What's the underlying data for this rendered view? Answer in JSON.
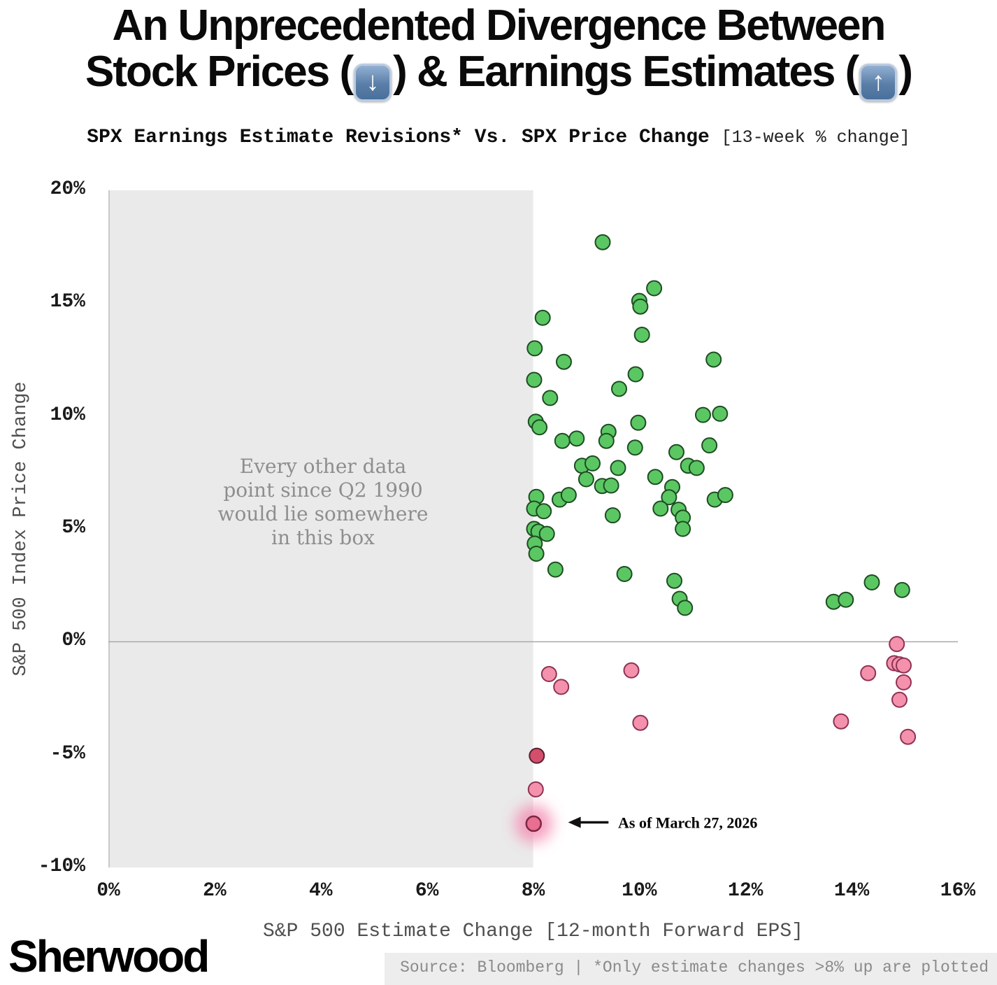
{
  "header": {
    "title_line1": "An Unprecedented Divergence Between",
    "title_line2_a": "Stock Prices (",
    "title_line2_b": ") & Earnings Estimates (",
    "title_line2_c": ")",
    "down_glyph": "↓",
    "up_glyph": "↑",
    "subtitle_main": "SPX Earnings Estimate Revisions* Vs. SPX Price Change ",
    "subtitle_note": "[13-week % change]"
  },
  "chart_data": {
    "type": "scatter",
    "title": "An Unprecedented Divergence Between Stock Prices (down) & Earnings Estimates (up)",
    "subtitle": "SPX Earnings Estimate Revisions* Vs. SPX Price Change [13-week % change]",
    "xlabel": "S&P 500 Estimate Change [12-month Forward EPS]",
    "ylabel": "S&P 500 Index Price Change",
    "xlim": [
      0,
      16
    ],
    "ylim": [
      -10,
      20
    ],
    "grid": "zero-line-only",
    "legend": "none",
    "x_ticks": [
      {
        "label": "0%",
        "value": 0
      },
      {
        "label": "2%",
        "value": 2
      },
      {
        "label": "4%",
        "value": 4
      },
      {
        "label": "6%",
        "value": 6
      },
      {
        "label": "8%",
        "value": 8
      },
      {
        "label": "10%",
        "value": 10
      },
      {
        "label": "12%",
        "value": 12
      },
      {
        "label": "14%",
        "value": 14
      },
      {
        "label": "16%",
        "value": 16
      }
    ],
    "y_ticks": [
      {
        "label": "20%",
        "value": 20
      },
      {
        "label": "15%",
        "value": 15
      },
      {
        "label": "10%",
        "value": 10
      },
      {
        "label": "5%",
        "value": 5
      },
      {
        "label": "0%",
        "value": 0
      },
      {
        "label": "-5%",
        "value": -5
      },
      {
        "label": "-10%",
        "value": -10
      }
    ],
    "box": {
      "x_range": [
        0,
        8
      ],
      "label_lines": [
        "Every other data",
        "point since Q2 1990",
        "would lie somewhere",
        "in this box"
      ]
    },
    "colors": {
      "box": "#eaeaea",
      "zero_line": "#a8a8a8",
      "axis_line": "#c9c9c9"
    },
    "series": [
      {
        "name": "price-gain",
        "color": "#5bc763",
        "stroke": "#1d4c22",
        "points": [
          [
            9.31,
            17.7
          ],
          [
            10.28,
            15.66
          ],
          [
            10.0,
            15.1
          ],
          [
            10.02,
            14.85
          ],
          [
            8.18,
            14.35
          ],
          [
            10.05,
            13.6
          ],
          [
            8.03,
            13.0
          ],
          [
            8.58,
            12.4
          ],
          [
            11.4,
            12.5
          ],
          [
            8.02,
            11.6
          ],
          [
            9.93,
            11.85
          ],
          [
            8.32,
            10.8
          ],
          [
            9.62,
            11.2
          ],
          [
            11.2,
            10.05
          ],
          [
            9.98,
            9.7
          ],
          [
            11.52,
            10.1
          ],
          [
            8.05,
            9.75
          ],
          [
            8.12,
            9.5
          ],
          [
            9.42,
            9.3
          ],
          [
            8.55,
            8.9
          ],
          [
            8.82,
            9.0
          ],
          [
            9.38,
            8.9
          ],
          [
            9.92,
            8.6
          ],
          [
            11.32,
            8.7
          ],
          [
            10.7,
            8.4
          ],
          [
            8.92,
            7.8
          ],
          [
            9.12,
            7.9
          ],
          [
            9.6,
            7.7
          ],
          [
            10.92,
            7.8
          ],
          [
            11.08,
            7.7
          ],
          [
            9.0,
            7.2
          ],
          [
            9.3,
            6.9
          ],
          [
            9.47,
            6.92
          ],
          [
            10.3,
            7.3
          ],
          [
            10.62,
            6.85
          ],
          [
            8.06,
            6.42
          ],
          [
            8.5,
            6.3
          ],
          [
            8.67,
            6.5
          ],
          [
            10.56,
            6.4
          ],
          [
            11.42,
            6.3
          ],
          [
            11.62,
            6.5
          ],
          [
            8.02,
            5.9
          ],
          [
            8.2,
            5.78
          ],
          [
            9.5,
            5.6
          ],
          [
            10.4,
            5.9
          ],
          [
            10.74,
            5.85
          ],
          [
            10.82,
            5.5
          ],
          [
            8.02,
            5.0
          ],
          [
            8.1,
            4.88
          ],
          [
            8.26,
            4.78
          ],
          [
            10.82,
            5.0
          ],
          [
            8.03,
            4.35
          ],
          [
            8.06,
            3.9
          ],
          [
            8.42,
            3.2
          ],
          [
            9.72,
            3.0
          ],
          [
            10.66,
            2.7
          ],
          [
            10.76,
            1.9
          ],
          [
            10.86,
            1.5
          ],
          [
            13.66,
            1.77
          ],
          [
            13.89,
            1.86
          ],
          [
            14.38,
            2.63
          ],
          [
            14.95,
            2.29
          ]
        ]
      },
      {
        "name": "price-decline",
        "color": "#f491ad",
        "stroke": "#8f3253",
        "points": [
          [
            8.3,
            -1.43
          ],
          [
            8.53,
            -2.0
          ],
          [
            9.85,
            -1.27
          ],
          [
            10.02,
            -3.59
          ],
          [
            14.31,
            -1.39
          ],
          [
            14.85,
            -0.1
          ],
          [
            14.8,
            -0.95
          ],
          [
            14.9,
            -1.0
          ],
          [
            14.98,
            -1.05
          ],
          [
            14.98,
            -1.8
          ],
          [
            14.9,
            -2.57
          ],
          [
            13.8,
            -3.53
          ],
          [
            15.06,
            -4.21
          ],
          [
            8.05,
            -6.54
          ]
        ]
      },
      {
        "name": "price-decline-deep",
        "color": "#d34f6b",
        "stroke": "#58202e",
        "points": [
          [
            8.07,
            -5.05
          ]
        ]
      }
    ],
    "highlight": {
      "point": [
        8.01,
        -8.06
      ],
      "color": "#e86e92",
      "stroke": "#7c2742",
      "glow": "#f48ab0"
    },
    "annotation": {
      "text": "As of March 27, 2026",
      "y": -8.0,
      "arrow_tail_x": 9.42,
      "arrow_tip_x": 8.66,
      "text_x": 9.6
    }
  },
  "footer": {
    "logo": "Sherwood",
    "source": "Source: Bloomberg | *Only estimate changes >8% up are plotted"
  }
}
